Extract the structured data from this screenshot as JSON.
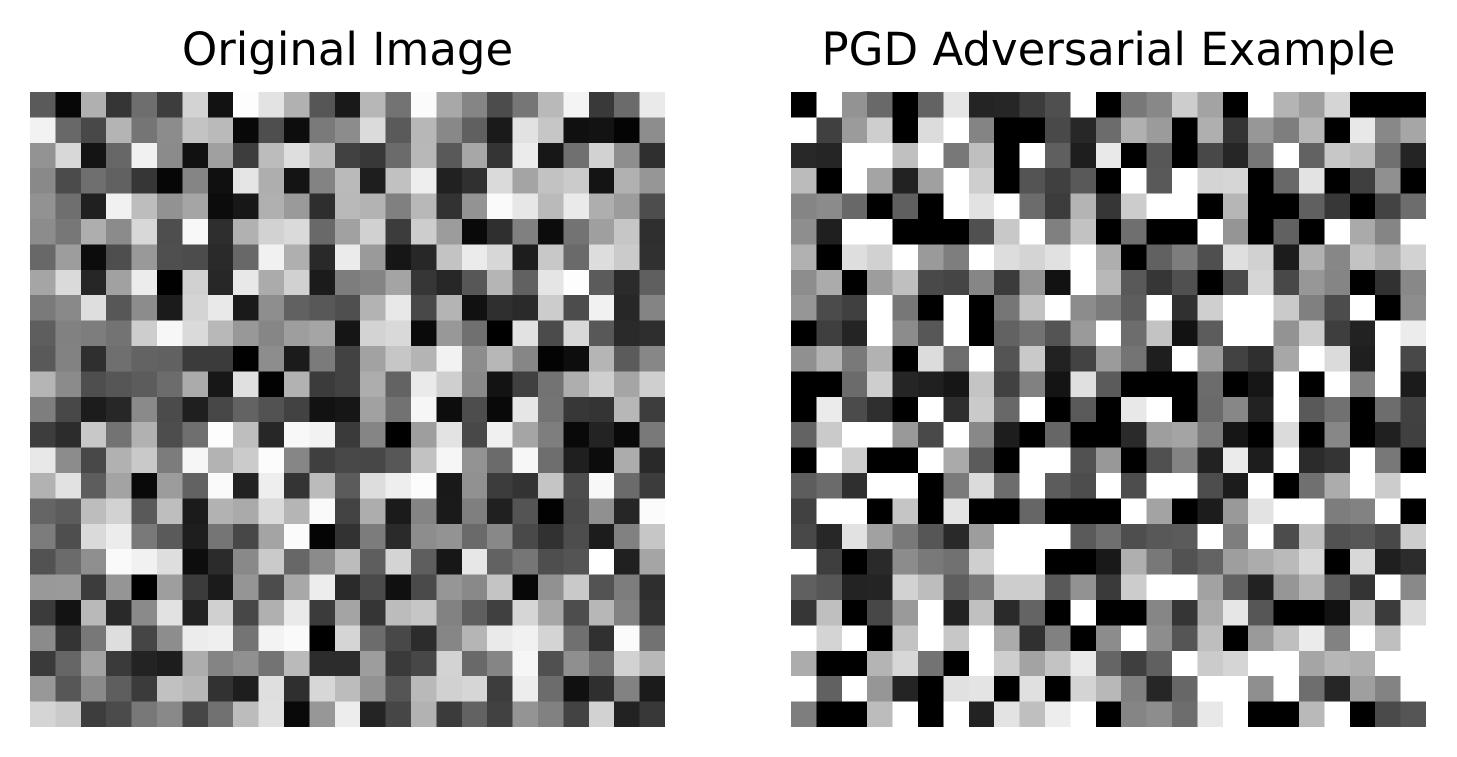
{
  "chart_data": [
    {
      "type": "heatmap",
      "title": "Original Image",
      "colormap": "gray",
      "rows": 25,
      "cols": 25,
      "axes": "off",
      "seed": 20240601
    },
    {
      "type": "heatmap",
      "title": "PGD Adversarial Example",
      "colormap": "gray",
      "rows": 25,
      "cols": 25,
      "axes": "off",
      "seed": 20240607
    }
  ]
}
